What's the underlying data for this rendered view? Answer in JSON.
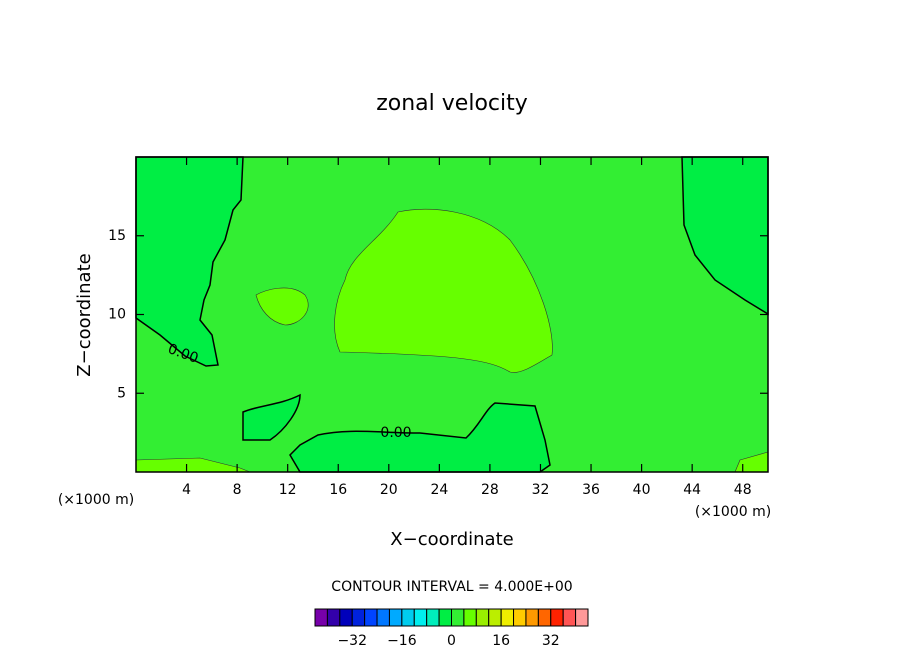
{
  "chart_data": {
    "type": "contour",
    "title": "zonal velocity",
    "xlabel": "X−coordinate",
    "ylabel": "Z−coordinate",
    "xunit": "(×1000 m)",
    "yunit": "(×1000 m)",
    "xlim": [
      0,
      50
    ],
    "xticks": [
      4,
      8,
      12,
      16,
      20,
      24,
      28,
      32,
      36,
      40,
      44,
      48
    ],
    "ylim": [
      0,
      20
    ],
    "yticks": [
      5,
      10,
      15
    ],
    "contour_labels": [
      "0.00",
      "0.00"
    ],
    "annotation": "CONTOUR INTERVAL = 4.000E+00",
    "colorbar": {
      "lim": [
        -44,
        44
      ],
      "ticks": [
        {
          "value": -32,
          "label": "−32"
        },
        {
          "value": -16,
          "label": "−16"
        },
        0,
        16,
        32
      ],
      "colors": [
        "#7700aa",
        "#3300aa",
        "#0000bb",
        "#0022dd",
        "#0044ff",
        "#0077ff",
        "#00aaff",
        "#00ccee",
        "#00eeee",
        "#00eebb",
        "#00ee44",
        "#33ee33",
        "#66ff00",
        "#99ee00",
        "#bbee00",
        "#eeee00",
        "#ffcc00",
        "#ff9900",
        "#ff6600",
        "#ff2200",
        "#ff5555",
        "#ff9999"
      ]
    }
  }
}
